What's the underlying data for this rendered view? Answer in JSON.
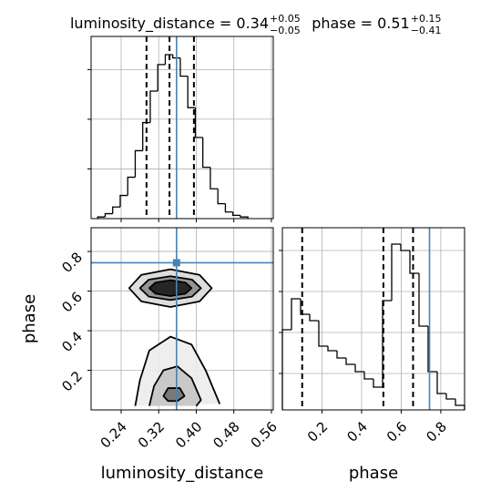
{
  "chart_data": [
    {
      "type": "histogram",
      "title": "luminosity_distance = 0.34",
      "title_sup": "+0.05",
      "title_sub": "−0.05",
      "bins": [
        0.19,
        0.206,
        0.222,
        0.238,
        0.254,
        0.27,
        0.286,
        0.302,
        0.318,
        0.334,
        0.35,
        0.366,
        0.382,
        0.398,
        0.414,
        0.43,
        0.446,
        0.462,
        0.478,
        0.494,
        0.51
      ],
      "values": [
        0.01,
        0.03,
        0.07,
        0.14,
        0.25,
        0.41,
        0.58,
        0.77,
        0.93,
        0.99,
        0.97,
        0.86,
        0.67,
        0.49,
        0.31,
        0.18,
        0.09,
        0.04,
        0.02,
        0.01
      ],
      "ylim": [
        0,
        1.1
      ],
      "yticks": [
        0.3,
        0.6,
        0.9
      ],
      "quantiles": [
        0.294,
        0.343,
        0.395
      ],
      "truth": 0.358,
      "color": "#000000",
      "truth_color": "#4682b4",
      "grid": true
    },
    {
      "type": "contour",
      "xlabel": "luminosity_distance",
      "ylabel": "phase",
      "xlim": [
        0.176,
        0.564
      ],
      "ylim": [
        0,
        0.92
      ],
      "xticks": [
        0.24,
        0.32,
        {
          "value": 0.4,
          "label": "0.40"
        },
        0.48,
        0.56
      ],
      "yticks": [
        0.2,
        0.4,
        0.6,
        0.8
      ],
      "contours": [
        {
          "x": [
            0.433,
            0.407,
            0.345,
            0.283,
            0.257,
            0.283,
            0.345,
            0.407
          ],
          "y": [
            0.615,
            0.682,
            0.71,
            0.682,
            0.615,
            0.548,
            0.52,
            0.548
          ],
          "closed": true,
          "fill": "#d9d9d9"
        },
        {
          "x": [
            0.41,
            0.391,
            0.345,
            0.299,
            0.28,
            0.299,
            0.345,
            0.391
          ],
          "y": [
            0.615,
            0.658,
            0.675,
            0.658,
            0.615,
            0.572,
            0.555,
            0.572
          ],
          "closed": true,
          "fill": "#8c8c8c"
        },
        {
          "x": [
            0.39,
            0.377,
            0.345,
            0.313,
            0.3,
            0.313,
            0.345,
            0.377
          ],
          "y": [
            0.615,
            0.643,
            0.655,
            0.643,
            0.615,
            0.587,
            0.575,
            0.587
          ],
          "closed": true,
          "fill": "#1a1a1a"
        },
        {
          "x": [
            0.27,
            0.28,
            0.3,
            0.345,
            0.39,
            0.42,
            0.45
          ],
          "y": [
            0.02,
            0.15,
            0.3,
            0.37,
            0.33,
            0.2,
            0.03
          ],
          "closed": false,
          "fill": "#ececec"
        },
        {
          "x": [
            0.3,
            0.31,
            0.33,
            0.36,
            0.39,
            0.41,
            0.4
          ],
          "y": [
            0.02,
            0.12,
            0.2,
            0.22,
            0.16,
            0.05,
            0.02
          ],
          "closed": false,
          "fill": "#c4c4c4"
        },
        {
          "x": [
            0.33,
            0.34,
            0.365,
            0.375,
            0.36,
            0.34
          ],
          "y": [
            0.07,
            0.11,
            0.11,
            0.07,
            0.045,
            0.045
          ],
          "closed": true,
          "fill": "#707070"
        }
      ],
      "truth": [
        0.358,
        0.743
      ],
      "color": "#000000",
      "truth_color": "#4682b4",
      "grid": true
    },
    {
      "type": "histogram",
      "title": "phase = 0.51",
      "title_sup": "+0.15",
      "title_sub": "−0.41",
      "xlabel": "phase",
      "bins": [
        0,
        0.046,
        0.092,
        0.138,
        0.184,
        0.23,
        0.276,
        0.322,
        0.368,
        0.414,
        0.46,
        0.506,
        0.552,
        0.598,
        0.644,
        0.69,
        0.736,
        0.782,
        0.828,
        0.874,
        0.92
      ],
      "values": [
        88,
        122,
        105,
        98,
        70,
        65,
        57,
        50,
        42,
        34,
        25,
        120,
        182,
        175,
        150,
        92,
        42,
        18,
        12,
        5
      ],
      "xlim": [
        0,
        0.92
      ],
      "xticks": [
        0.2,
        0.4,
        0.6,
        0.8
      ],
      "ylim": [
        0,
        200
      ],
      "yticks": [
        40,
        85,
        130,
        175
      ],
      "quantiles": [
        0.1,
        0.51,
        0.66
      ],
      "truth": 0.743,
      "color": "#000000",
      "truth_color": "#4682b4",
      "grid": true
    }
  ]
}
